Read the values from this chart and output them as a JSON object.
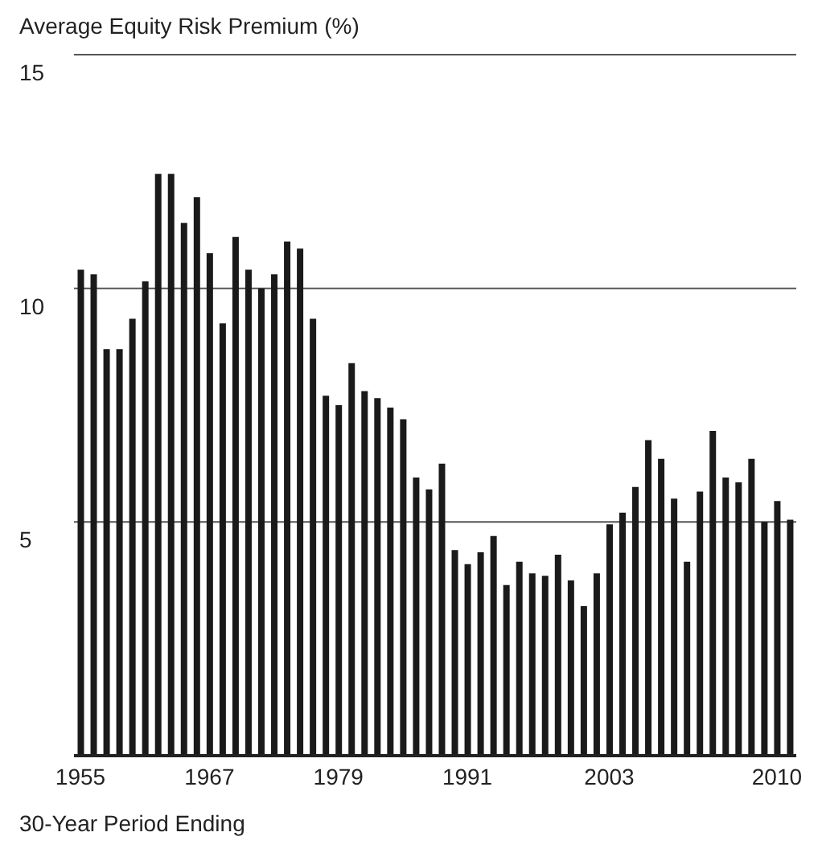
{
  "chart_data": {
    "type": "bar",
    "ylabel": "Average Equity Risk Premium (%)",
    "xlabel": "30-Year Period Ending",
    "categories": [
      "1955",
      null,
      null,
      null,
      null,
      null,
      null,
      null,
      null,
      null,
      "1967",
      null,
      null,
      null,
      null,
      null,
      null,
      null,
      null,
      null,
      "1979",
      null,
      null,
      null,
      null,
      null,
      null,
      null,
      null,
      null,
      "1991",
      null,
      null,
      null,
      null,
      null,
      null,
      null,
      null,
      null,
      null,
      "2003",
      null,
      null,
      null,
      null,
      null,
      null,
      null,
      null,
      null,
      null,
      null,
      null,
      "2010",
      null
    ],
    "values": [
      10.4,
      10.3,
      8.7,
      8.7,
      9.35,
      10.15,
      12.45,
      12.45,
      11.4,
      11.95,
      10.75,
      9.25,
      11.1,
      10.4,
      10,
      10.3,
      11,
      10.85,
      9.35,
      7.7,
      7.5,
      8.4,
      7.8,
      7.65,
      7.45,
      7.2,
      5.95,
      5.7,
      6.25,
      4.4,
      4.1,
      4.35,
      4.7,
      3.65,
      4.15,
      3.9,
      3.85,
      4.3,
      3.75,
      3.2,
      3.9,
      4.95,
      5.2,
      5.75,
      6.75,
      6.35,
      5.5,
      4.15,
      5.65,
      6.95,
      5.95,
      5.85,
      6.35,
      5,
      5.45,
      5.05
    ],
    "color": "#1a1a1a",
    "ylim": [
      0,
      15
    ],
    "yticks": [
      5,
      10,
      15
    ],
    "grid": "y"
  }
}
